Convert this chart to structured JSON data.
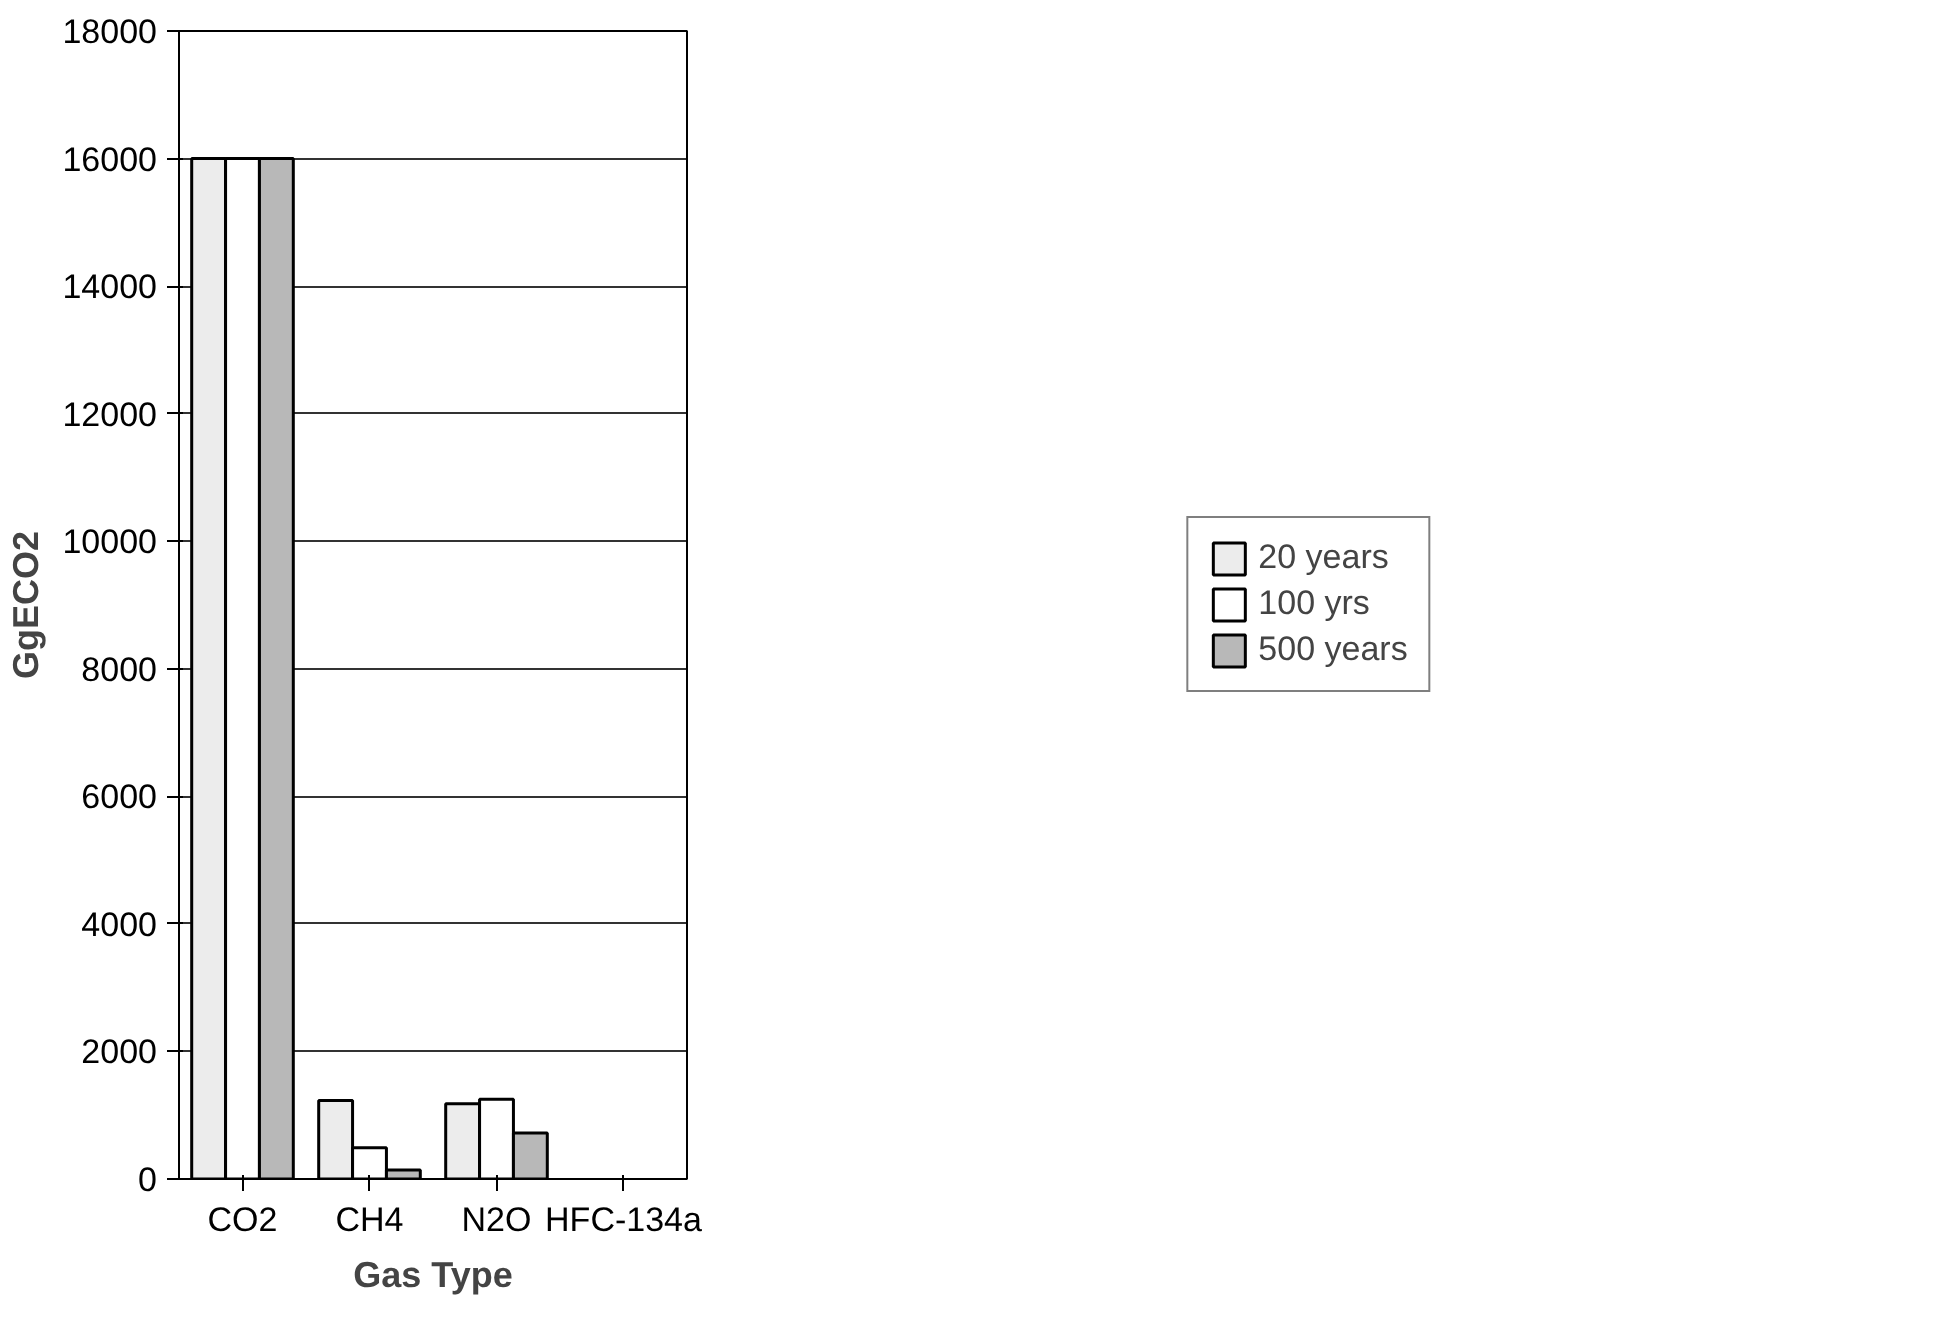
{
  "chart_data": {
    "type": "bar",
    "xlabel": "Gas Type",
    "ylabel": "GgECO2",
    "categories": [
      "CO2",
      "CH4",
      "N2O",
      "HFC-134a"
    ],
    "series": [
      {
        "name": "20 years",
        "color": "#ececec",
        "values": [
          16000,
          1230,
          1180,
          null
        ]
      },
      {
        "name": "100 yrs",
        "color": "#ffffff",
        "values": [
          16000,
          490,
          1250,
          null
        ]
      },
      {
        "name": "500 years",
        "color": "#b8b8b8",
        "values": [
          16000,
          140,
          720,
          null
        ]
      }
    ],
    "ylim": [
      0,
      18000
    ],
    "yticks": [
      0,
      2000,
      4000,
      6000,
      8000,
      10000,
      12000,
      14000,
      16000,
      18000
    ],
    "grid": "y",
    "legend": "right"
  }
}
